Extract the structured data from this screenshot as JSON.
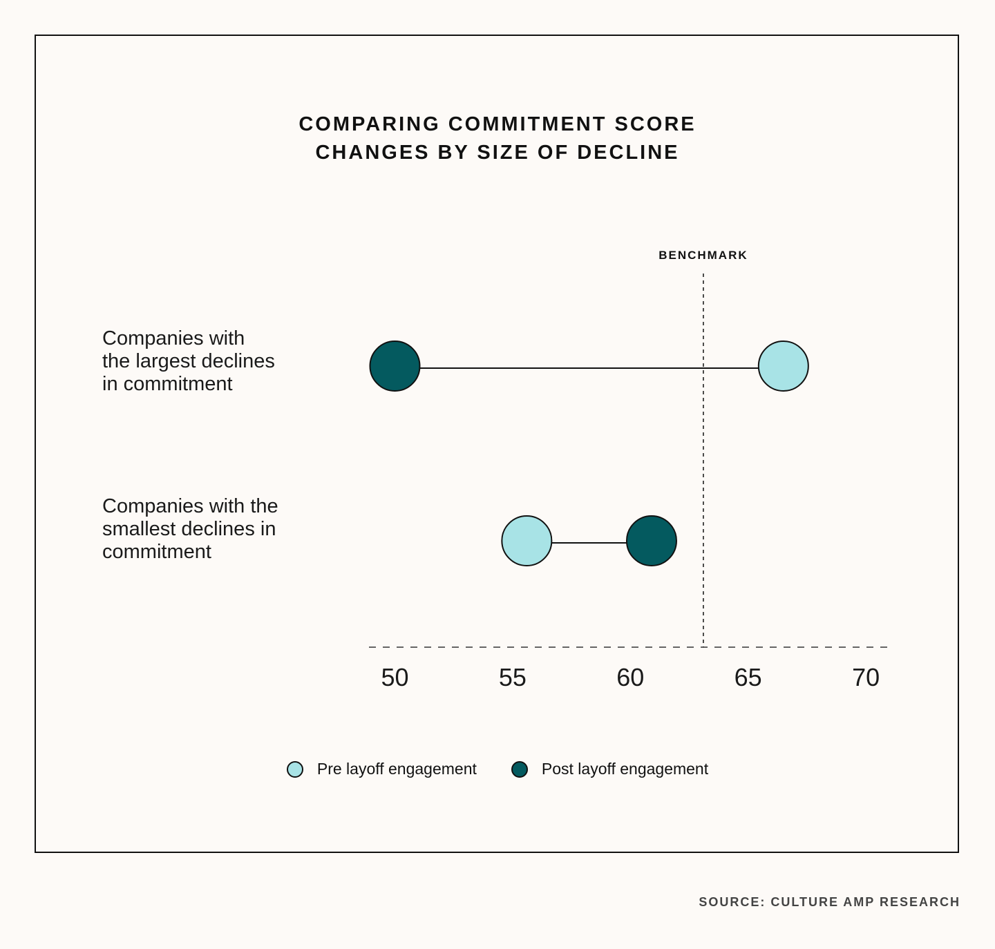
{
  "chart_data": {
    "type": "dumbbell",
    "title_lines": [
      "COMPARING COMMITMENT SCORE",
      "CHANGES BY SIZE OF DECLINE"
    ],
    "categories": [
      {
        "label_lines": [
          "Companies with",
          "the largest declines",
          "in commitment"
        ],
        "pre": 66.5,
        "post": 50
      },
      {
        "label_lines": [
          "Companies with the",
          "smallest declines in",
          "commitment"
        ],
        "pre": 55.6,
        "post": 60.9
      }
    ],
    "series": [
      {
        "name": "Pre layoff engagement",
        "color": "#a8e3e6"
      },
      {
        "name": "Post layoff engagement",
        "color": "#045a5f"
      }
    ],
    "benchmark": {
      "label": "BENCHMARK",
      "value": 63.1
    },
    "x_ticks": [
      "50",
      "55",
      "60",
      "65",
      "70"
    ],
    "xlim": [
      48.9,
      71.2
    ],
    "grid": false,
    "legend_placement": "bottom"
  },
  "source": "SOURCE: CULTURE AMP RESEARCH"
}
